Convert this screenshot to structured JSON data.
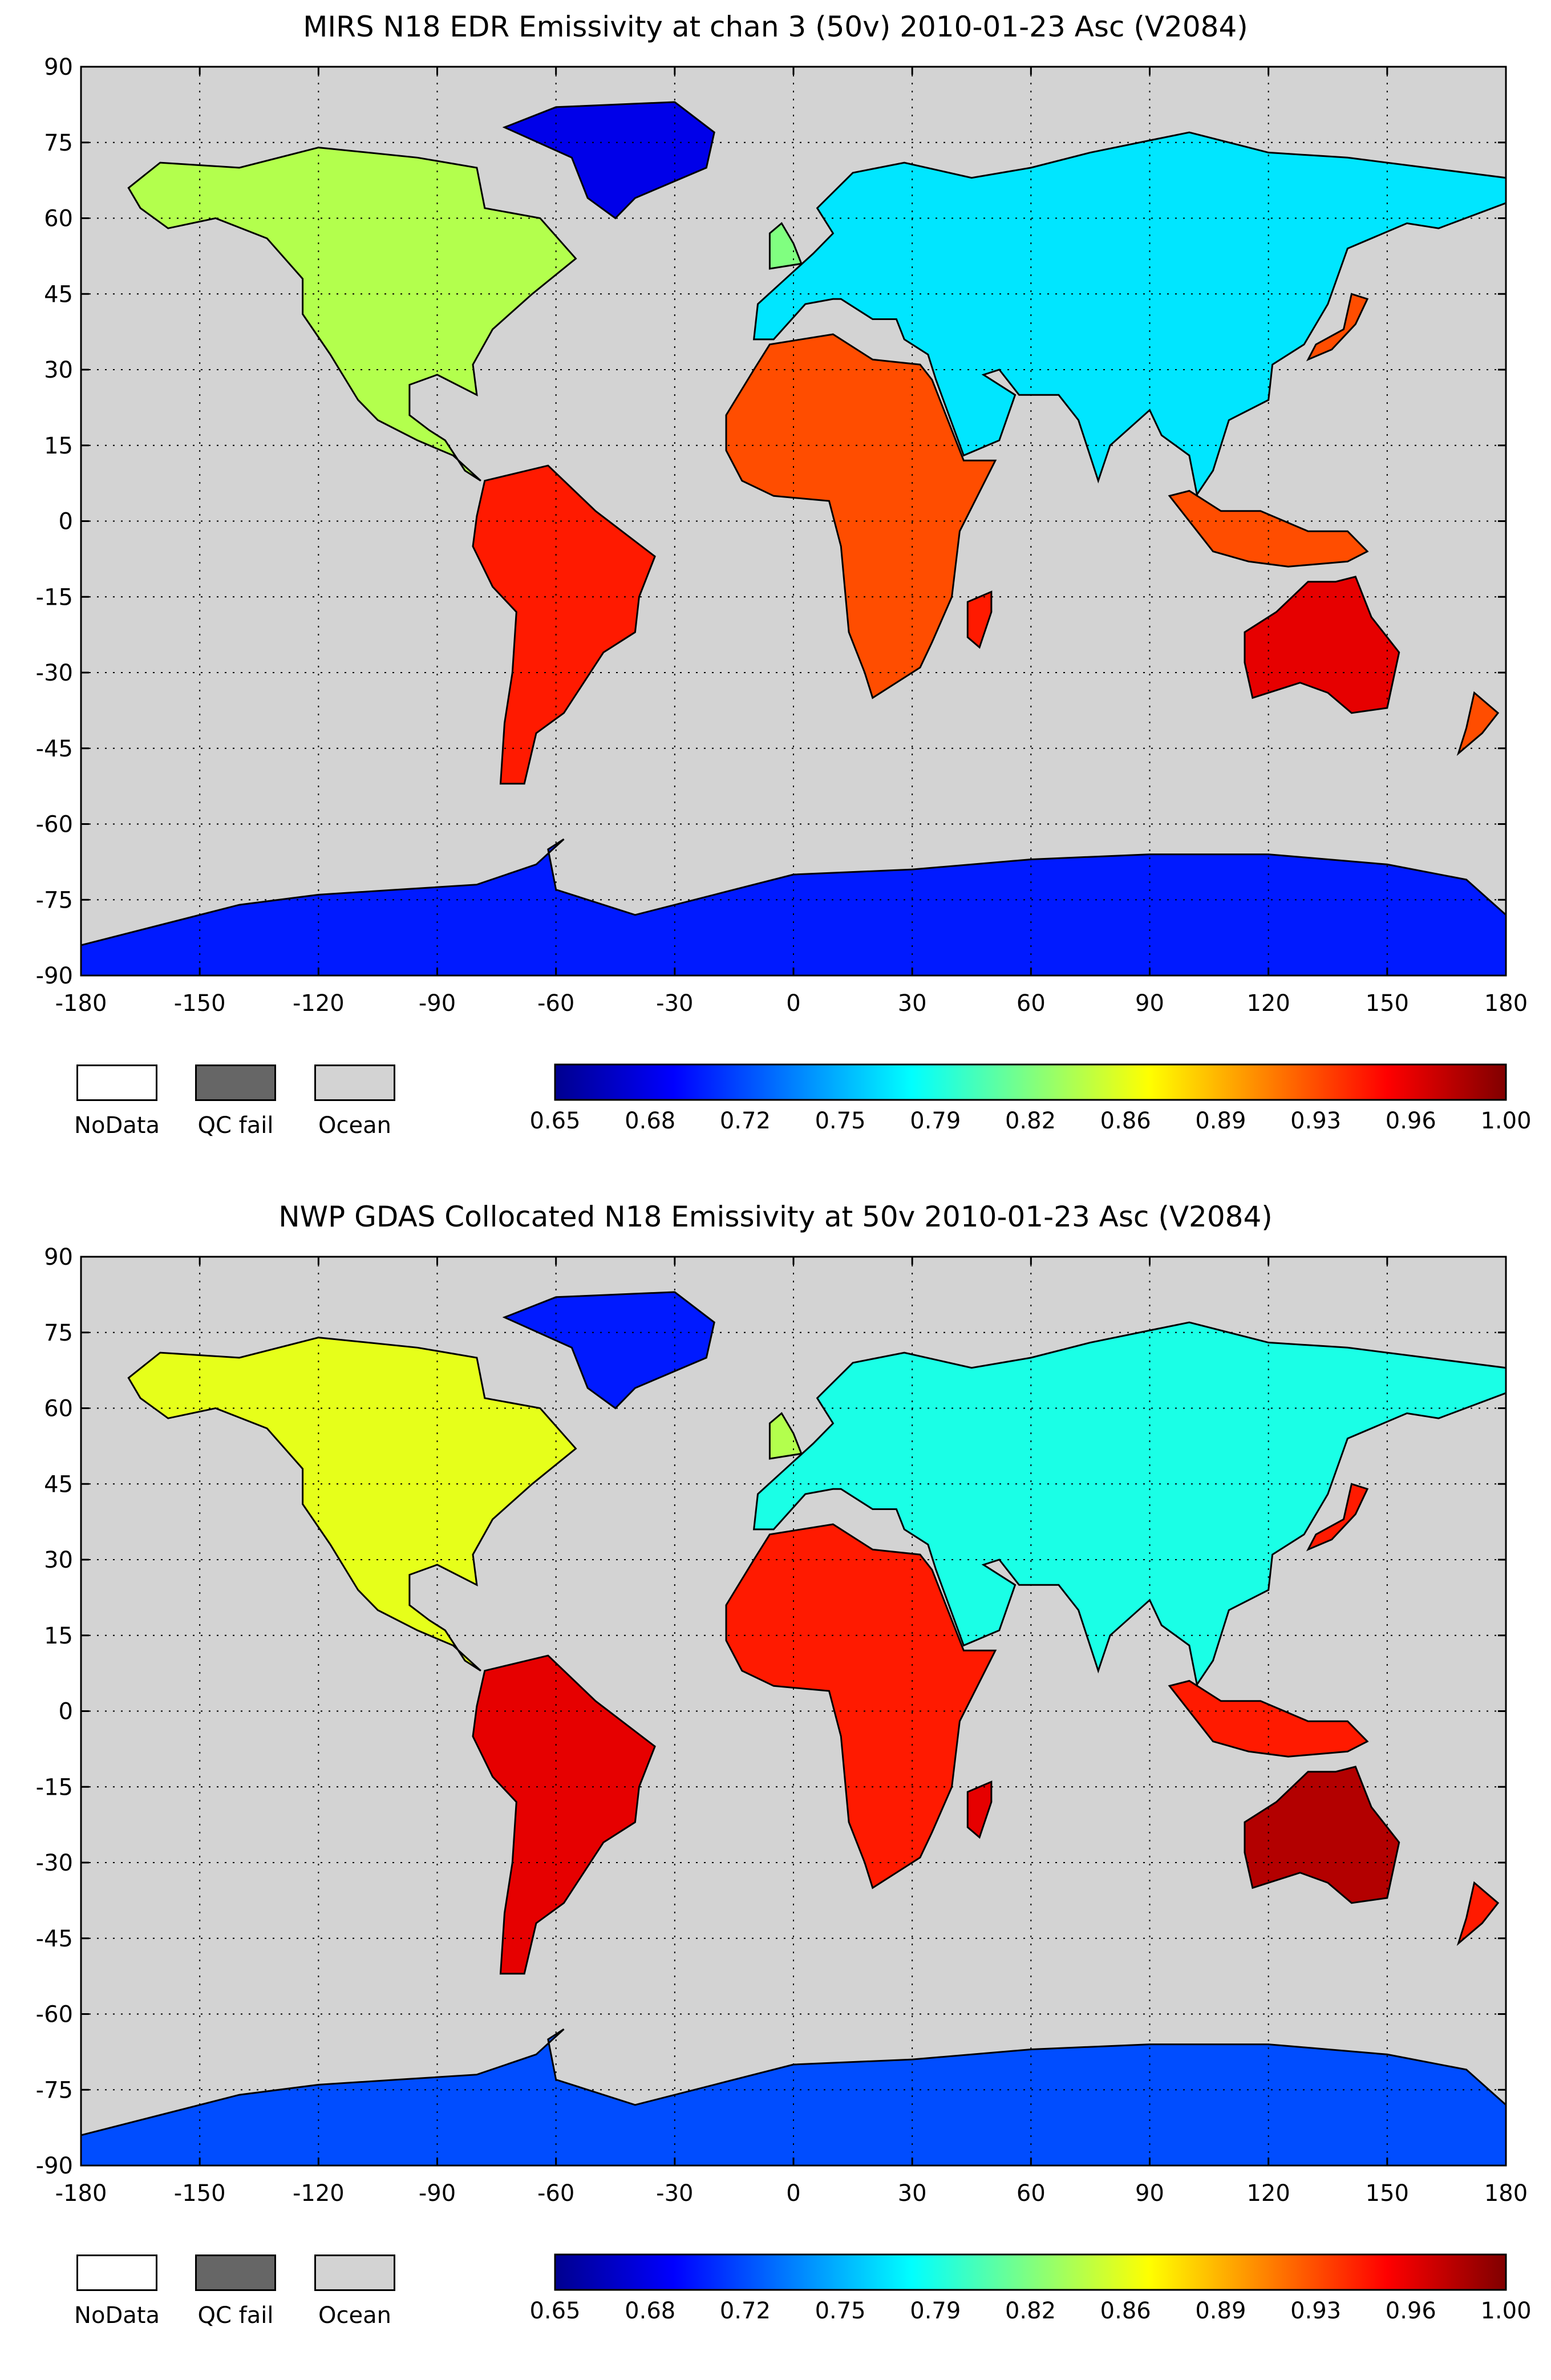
{
  "maps": [
    {
      "title": "MIRS N18 EDR Emissivity at chan 3 (50v) 2010-01-23 Asc (V2084)",
      "y_ticks": [
        "90",
        "75",
        "60",
        "45",
        "30",
        "15",
        "0",
        "-15",
        "-30",
        "-45",
        "-60",
        "-75",
        "-90"
      ],
      "x_ticks": [
        "-180",
        "-150",
        "-120",
        "-90",
        "-60",
        "-30",
        "0",
        "30",
        "60",
        "90",
        "120",
        "150",
        "180"
      ],
      "legend": {
        "nodata": "NoData",
        "qcfail": "QC fail",
        "ocean": "Ocean"
      },
      "colorbar_ticks": [
        "0.65",
        "0.68",
        "0.72",
        "0.75",
        "0.79",
        "0.82",
        "0.86",
        "0.89",
        "0.93",
        "0.96",
        "1.00"
      ]
    },
    {
      "title": "NWP GDAS Collocated N18 Emissivity at 50v 2010-01-23 Asc (V2084)",
      "y_ticks": [
        "90",
        "75",
        "60",
        "45",
        "30",
        "15",
        "0",
        "-15",
        "-30",
        "-45",
        "-60",
        "-75",
        "-90"
      ],
      "x_ticks": [
        "-180",
        "-150",
        "-120",
        "-90",
        "-60",
        "-30",
        "0",
        "30",
        "60",
        "90",
        "120",
        "150",
        "180"
      ],
      "legend": {
        "nodata": "NoData",
        "qcfail": "QC fail",
        "ocean": "Ocean"
      },
      "colorbar_ticks": [
        "0.65",
        "0.68",
        "0.72",
        "0.75",
        "0.79",
        "0.82",
        "0.86",
        "0.89",
        "0.93",
        "0.96",
        "1.00"
      ]
    }
  ],
  "colors": {
    "ocean": "#d3d3d3",
    "qc_fail": "#666666",
    "nodata": "#ffffff",
    "colormap": [
      "#00008f",
      "#0000ff",
      "#0080ff",
      "#00ffff",
      "#80ff80",
      "#ffff00",
      "#ff8000",
      "#ff0000",
      "#800000"
    ]
  }
}
